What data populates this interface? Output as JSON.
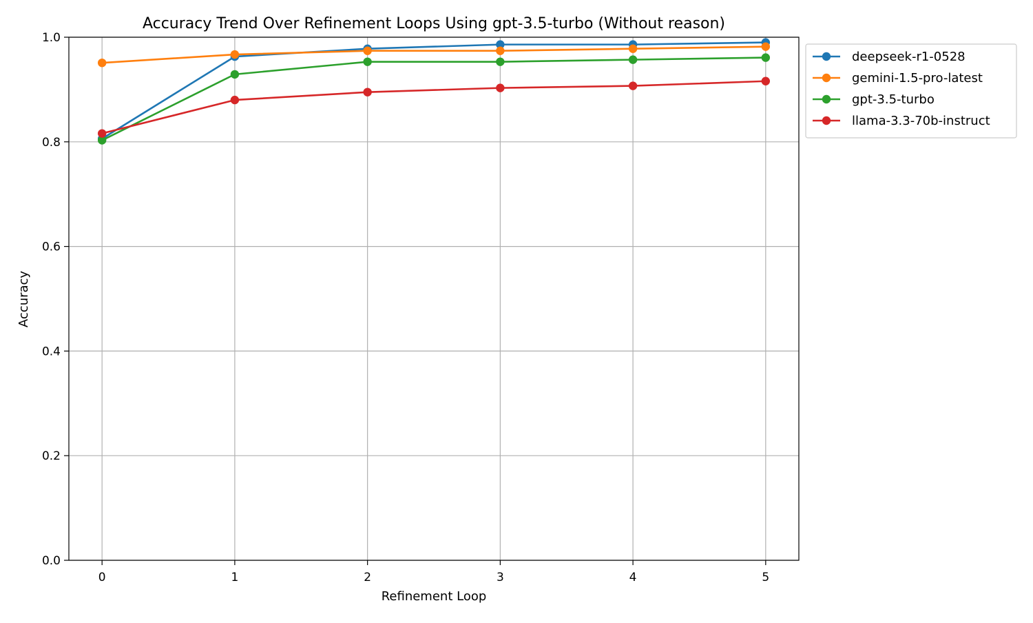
{
  "chart_data": {
    "type": "line",
    "title": "Accuracy Trend Over Refinement Loops Using gpt-3.5-turbo (Without reason)",
    "xlabel": "Refinement Loop",
    "ylabel": "Accuracy",
    "x": [
      0,
      1,
      2,
      3,
      4,
      5
    ],
    "xlim": [
      -0.25,
      5.25
    ],
    "ylim": [
      0,
      1
    ],
    "xticks": [
      "0",
      "1",
      "2",
      "3",
      "4",
      "5"
    ],
    "yticks": [
      "0.0",
      "0.2",
      "0.4",
      "0.6",
      "0.8",
      "1.0"
    ],
    "grid": true,
    "legend_position": "outside top-right",
    "series": [
      {
        "name": "deepseek-r1-0528",
        "color": "#1f77b4",
        "values": [
          0.806,
          0.963,
          0.978,
          0.986,
          0.986,
          0.99
        ]
      },
      {
        "name": "gemini-1.5-pro-latest",
        "color": "#ff7f0e",
        "values": [
          0.951,
          0.967,
          0.974,
          0.974,
          0.978,
          0.982
        ]
      },
      {
        "name": "gpt-3.5-turbo",
        "color": "#2ca02c",
        "values": [
          0.803,
          0.929,
          0.953,
          0.953,
          0.957,
          0.961
        ]
      },
      {
        "name": "llama-3.3-70b-instruct",
        "color": "#d62728",
        "values": [
          0.816,
          0.88,
          0.895,
          0.903,
          0.907,
          0.916
        ]
      }
    ]
  }
}
